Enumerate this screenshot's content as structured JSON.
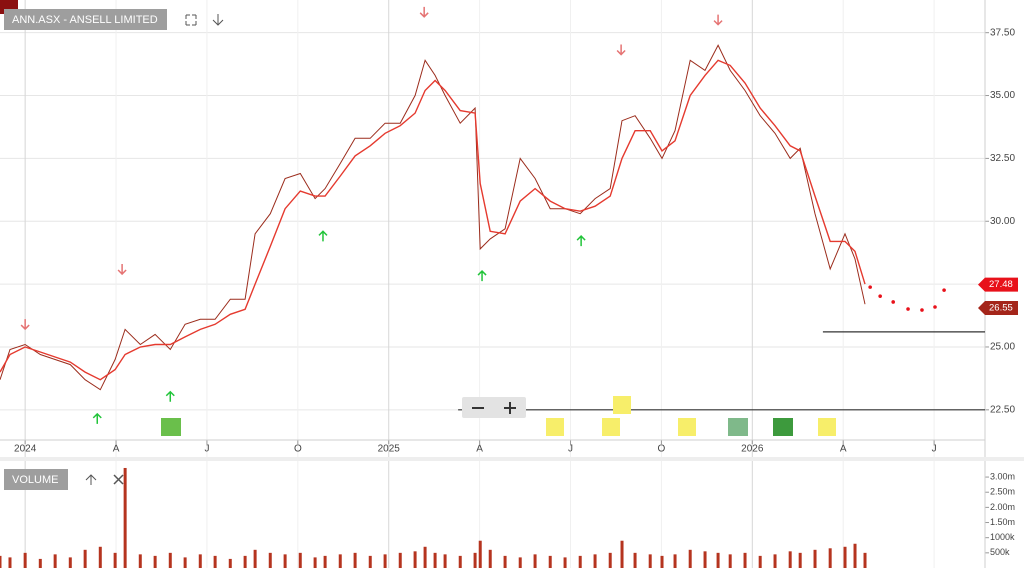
{
  "chart_data": {
    "type": "stock",
    "title": "ANN.ASX - ANSELL LIMITED",
    "volume_title": "VOLUME",
    "xlim": [
      -0.83,
      31.68
    ],
    "ylim": [
      21.3,
      38.8
    ],
    "xticks": [
      {
        "value": 0,
        "label": "2024"
      },
      {
        "value": 3,
        "label": "A"
      },
      {
        "value": 6,
        "label": "J"
      },
      {
        "value": 9,
        "label": "O"
      },
      {
        "value": 12,
        "label": "2025"
      },
      {
        "value": 15,
        "label": "A"
      },
      {
        "value": 18,
        "label": "J"
      },
      {
        "value": 21,
        "label": "O"
      },
      {
        "value": 24,
        "label": "2026"
      },
      {
        "value": 27,
        "label": "A"
      },
      {
        "value": 30,
        "label": "J"
      }
    ],
    "yticks": [
      {
        "value": 22.5,
        "label": "22.50"
      },
      {
        "value": 25,
        "label": "25.00"
      },
      {
        "value": 27.5,
        "label": "27.50"
      },
      {
        "value": 30,
        "label": "30.00"
      },
      {
        "value": 32.5,
        "label": "32.50"
      },
      {
        "value": 35,
        "label": "35.00"
      },
      {
        "value": 37.5,
        "label": "37.50"
      }
    ],
    "grid": true,
    "x": [
      -0.83,
      -0.5,
      0,
      0.5,
      0.99,
      1.49,
      1.98,
      2.48,
      2.97,
      3.3,
      3.8,
      4.29,
      4.79,
      5.28,
      5.78,
      6.27,
      6.77,
      7.26,
      7.59,
      8.09,
      8.58,
      9.08,
      9.57,
      9.9,
      10.4,
      10.89,
      11.39,
      11.88,
      12.38,
      12.87,
      13.2,
      13.53,
      13.86,
      14.36,
      14.85,
      15.02,
      15.35,
      15.84,
      16.34,
      16.83,
      17.33,
      17.82,
      18.32,
      18.81,
      19.31,
      19.7,
      20.13,
      20.63,
      21.02,
      21.45,
      21.95,
      22.44,
      22.87,
      23.27,
      23.76,
      24.26,
      24.75,
      25.25,
      25.58,
      26.07,
      26.57,
      27.06,
      27.39,
      27.72
    ],
    "series": [
      {
        "color": "#9b2c1c",
        "values": [
          23.7,
          24.9,
          25.1,
          24.7,
          24.5,
          24.3,
          23.7,
          23.3,
          24.5,
          25.7,
          25.1,
          25.5,
          24.9,
          25.9,
          26.1,
          26.1,
          26.9,
          26.9,
          29.5,
          30.3,
          31.7,
          31.9,
          30.9,
          31.3,
          32.3,
          33.3,
          33.3,
          33.9,
          33.9,
          35.0,
          36.4,
          35.8,
          35.0,
          33.9,
          34.5,
          28.9,
          29.3,
          29.7,
          32.5,
          31.7,
          30.5,
          30.5,
          30.3,
          30.9,
          31.3,
          34.0,
          34.2,
          33.3,
          32.5,
          33.6,
          36.4,
          36.0,
          37.0,
          36.0,
          35.2,
          34.2,
          33.5,
          32.5,
          32.9,
          30.3,
          28.1,
          29.5,
          28.5,
          26.7
        ]
      },
      {
        "color": "#e53a2f",
        "values": [
          24.0,
          24.7,
          25.0,
          24.8,
          24.6,
          24.4,
          24.0,
          23.7,
          24.1,
          24.7,
          25.0,
          25.1,
          25.1,
          25.4,
          25.7,
          25.9,
          26.3,
          26.5,
          27.5,
          29.0,
          30.5,
          31.2,
          31.0,
          31.0,
          31.8,
          32.6,
          33.0,
          33.5,
          33.8,
          34.3,
          35.2,
          35.6,
          35.2,
          34.4,
          34.3,
          31.5,
          29.6,
          29.5,
          30.8,
          31.3,
          30.8,
          30.5,
          30.4,
          30.6,
          31.0,
          32.5,
          33.6,
          33.6,
          32.8,
          33.2,
          35.0,
          35.8,
          36.4,
          36.2,
          35.5,
          34.5,
          33.8,
          33.0,
          32.8,
          31.0,
          29.2,
          29.2,
          28.8,
          27.5
        ]
      }
    ],
    "forecast": {
      "color": "#e8111a",
      "x": [
        27.89,
        28.22,
        28.65,
        29.14,
        29.6,
        30.03,
        30.33
      ],
      "values": [
        27.38,
        27.02,
        26.79,
        26.51,
        26.47,
        26.59,
        27.26
      ]
    },
    "levels": [
      {
        "value": 25.6,
        "from": 26.33
      },
      {
        "value": 22.5,
        "from": 14.29
      }
    ],
    "sell_signals": {
      "color": "#e57373",
      "x": [
        0,
        3.2,
        13.17,
        19.67,
        22.87
      ],
      "y": [
        25.91,
        28.1,
        38.33,
        36.83,
        38.02
      ]
    },
    "buy_signals": {
      "color": "#22c43a",
      "x": [
        2.38,
        4.79,
        9.83,
        15.08,
        18.35
      ],
      "y": [
        22.14,
        23.02,
        29.4,
        27.82,
        29.21
      ]
    },
    "price_tags": [
      27.48,
      26.55
    ],
    "price_tag_colors": [
      "#e8111a",
      "#a4251a"
    ],
    "volume": {
      "color": "#b5341f",
      "values": [
        400000,
        350000,
        500000,
        300000,
        450000,
        350000,
        600000,
        700000,
        500000,
        3300000,
        450000,
        400000,
        500000,
        350000,
        450000,
        400000,
        300000,
        400000,
        600000,
        500000,
        450000,
        500000,
        350000,
        400000,
        450000,
        500000,
        400000,
        450000,
        500000,
        550000,
        700000,
        500000,
        450000,
        400000,
        500000,
        900000,
        600000,
        400000,
        350000,
        450000,
        400000,
        350000,
        400000,
        450000,
        500000,
        900000,
        500000,
        450000,
        400000,
        450000,
        600000,
        550000,
        500000,
        450000,
        500000,
        400000,
        450000,
        550000,
        500000,
        600000,
        650000,
        700000,
        800000,
        500000
      ]
    },
    "volume_ylim": [
      0,
      3530000
    ],
    "volume_ticks": [
      {
        "value": 500000,
        "label": "500k"
      },
      {
        "value": 1000000,
        "label": "1000k"
      },
      {
        "value": 1500000,
        "label": "1.50m"
      },
      {
        "value": 2000000,
        "label": "2.00m"
      },
      {
        "value": 2500000,
        "label": "2.50m"
      },
      {
        "value": 3000000,
        "label": "3.00m"
      }
    ]
  }
}
